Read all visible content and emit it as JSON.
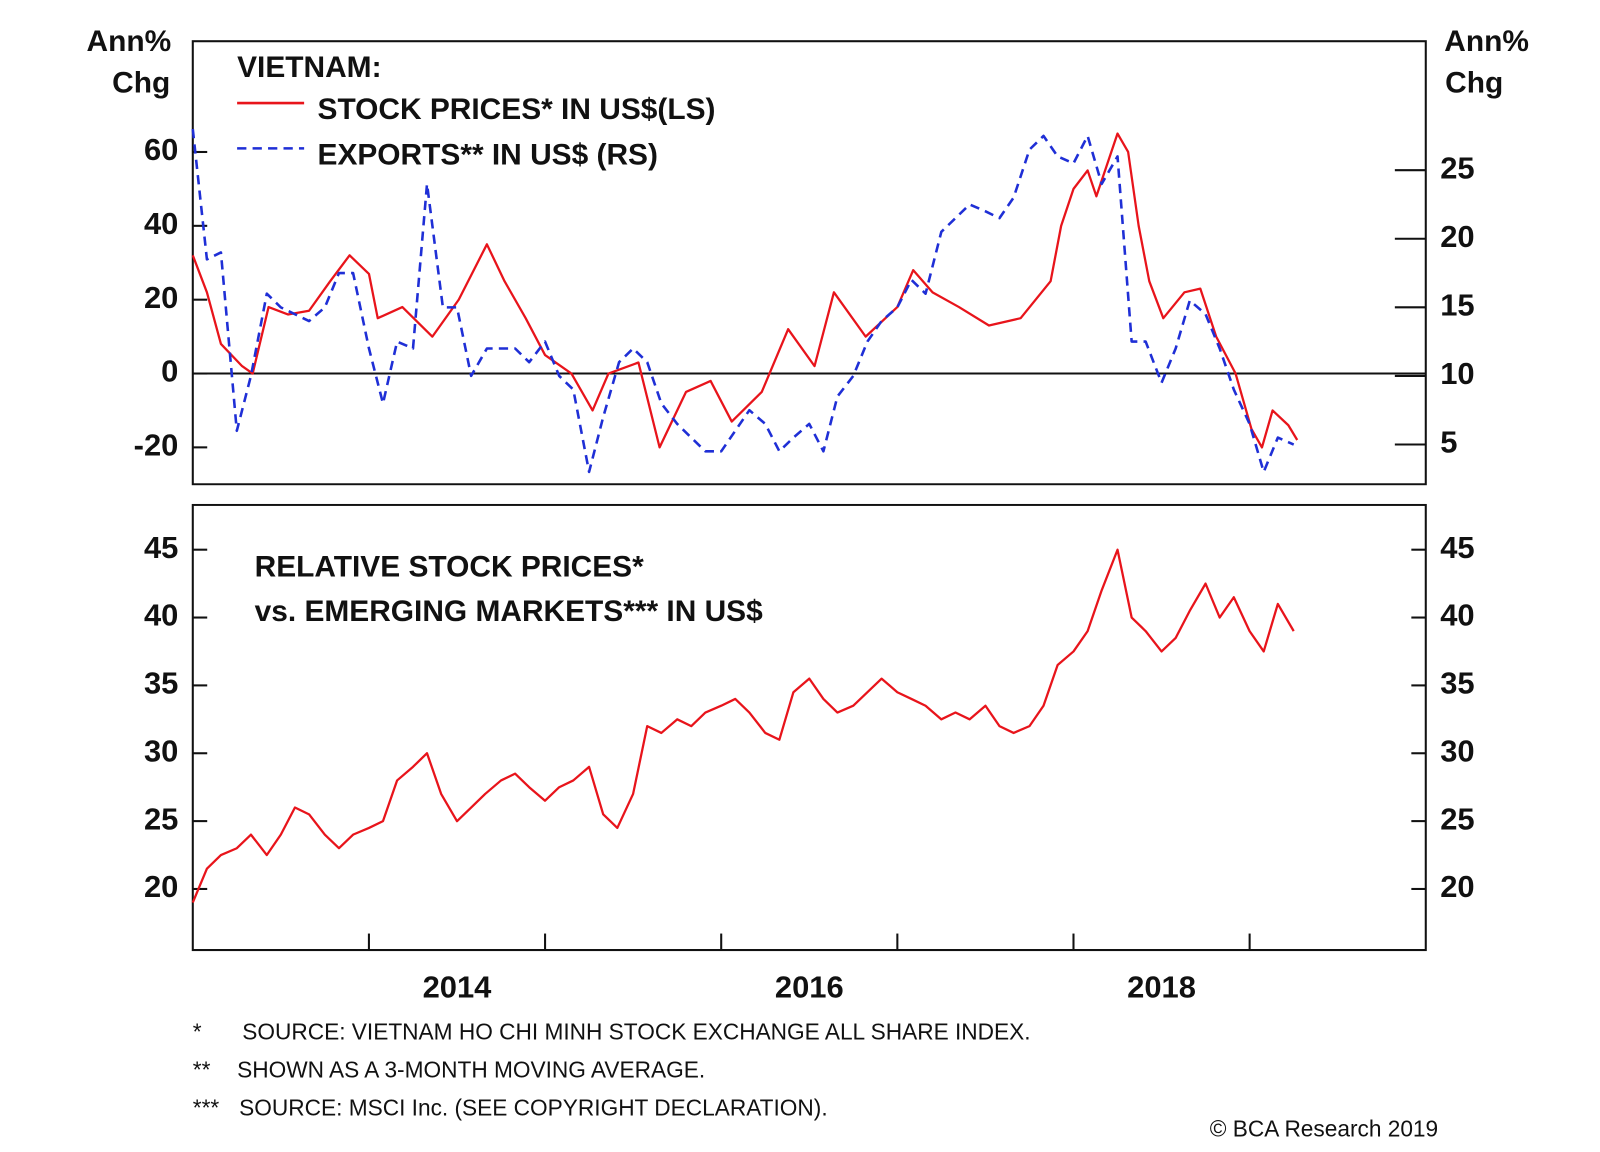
{
  "chart_data": [
    {
      "type": "line",
      "legend_title": "VIETNAM:",
      "ylabel": [
        "Ann%",
        "Chg"
      ],
      "y2label": [
        "Ann%",
        "Chg"
      ],
      "xlim": [
        2013,
        2020
      ],
      "ylim": [
        -30,
        90
      ],
      "yticks": [
        -20,
        0,
        20,
        40,
        60
      ],
      "y2lim": [
        2.1,
        34.4
      ],
      "y2ticks": [
        5,
        10,
        15,
        20,
        25
      ],
      "zero_line": true,
      "series": [
        {
          "name": "STOCK PRICES* IN US$(LS)",
          "color": "#e8141b",
          "dash": false,
          "axis": "y",
          "x": [
            2013.0,
            2013.08,
            2013.16,
            2013.28,
            2013.34,
            2013.43,
            2013.54,
            2013.66,
            2013.78,
            2013.89,
            2014.0,
            2014.05,
            2014.19,
            2014.36,
            2014.51,
            2014.67,
            2014.77,
            2014.89,
            2015.0,
            2015.15,
            2015.27,
            2015.36,
            2015.53,
            2015.65,
            2015.8,
            2015.94,
            2016.06,
            2016.23,
            2016.38,
            2016.53,
            2016.64,
            2016.82,
            2017.0,
            2017.09,
            2017.2,
            2017.35,
            2017.52,
            2017.7,
            2017.87,
            2017.93,
            2018.0,
            2018.08,
            2018.13,
            2018.25,
            2018.31,
            2018.37,
            2018.43,
            2018.51,
            2018.63,
            2018.72,
            2018.81,
            2018.92,
            2019.01,
            2019.07,
            2019.13,
            2019.22,
            2019.27
          ],
          "values": [
            32,
            22,
            8,
            2,
            0,
            18,
            16,
            17,
            25,
            32,
            27,
            15,
            18,
            10,
            20,
            35,
            25,
            15,
            5,
            0,
            -10,
            0,
            3,
            -20,
            -5,
            -2,
            -13,
            -5,
            12,
            2,
            22,
            10,
            18,
            28,
            22,
            18,
            13,
            15,
            25,
            40,
            50,
            55,
            48,
            65,
            60,
            40,
            25,
            15,
            22,
            23,
            10,
            0,
            -15,
            -20,
            -10,
            -14,
            -18
          ]
        },
        {
          "name": "EXPORTS** IN US$ (RS)",
          "color": "#1f2fd6",
          "dash": true,
          "axis": "y2",
          "x": [
            2013.0,
            2013.08,
            2013.16,
            2013.25,
            2013.33,
            2013.42,
            2013.5,
            2013.66,
            2013.75,
            2013.83,
            2013.91,
            2014.0,
            2014.08,
            2014.16,
            2014.25,
            2014.33,
            2014.42,
            2014.5,
            2014.58,
            2014.67,
            2014.75,
            2014.83,
            2014.91,
            2015.0,
            2015.08,
            2015.16,
            2015.25,
            2015.33,
            2015.42,
            2015.5,
            2015.58,
            2015.66,
            2015.75,
            2015.83,
            2015.91,
            2016.0,
            2016.08,
            2016.16,
            2016.25,
            2016.33,
            2016.41,
            2016.5,
            2016.58,
            2016.66,
            2016.75,
            2016.83,
            2016.91,
            2017.0,
            2017.08,
            2017.16,
            2017.25,
            2017.33,
            2017.41,
            2017.5,
            2017.58,
            2017.66,
            2017.75,
            2017.83,
            2017.91,
            2018.0,
            2018.08,
            2018.16,
            2018.25,
            2018.33,
            2018.41,
            2018.5,
            2018.58,
            2018.66,
            2018.75,
            2018.83,
            2018.91,
            2019.0,
            2019.08,
            2019.16,
            2019.25
          ],
          "values": [
            28,
            18.5,
            19,
            6,
            10,
            16,
            15,
            14,
            15,
            17.5,
            17.5,
            12,
            8,
            12.5,
            12,
            24,
            15,
            15,
            10,
            12,
            12,
            12,
            11,
            12.5,
            10,
            9,
            3,
            7,
            11,
            12,
            11,
            8,
            6.5,
            5.5,
            4.5,
            4.5,
            6,
            7.5,
            6.5,
            4.5,
            5.5,
            6.5,
            4.5,
            8.5,
            10,
            12.5,
            14,
            15,
            17,
            16,
            20.5,
            21.5,
            22.5,
            22,
            21.5,
            23,
            26.5,
            27.5,
            26,
            25.5,
            27.5,
            24,
            26,
            12.5,
            12.5,
            9.5,
            12,
            15.5,
            14.5,
            12,
            9,
            6.5,
            3,
            5.5,
            5
          ]
        }
      ]
    },
    {
      "type": "line",
      "annotation": [
        "RELATIVE STOCK PRICES*",
        "vs. EMERGING MARKETS*** IN US$"
      ],
      "xlim": [
        2013,
        2020
      ],
      "xticks": [
        2014,
        2015,
        2016,
        2017,
        2018,
        2019
      ],
      "xtick_labels": [
        2014,
        2016,
        2018
      ],
      "ylim": [
        15.5,
        48.3
      ],
      "yticks": [
        20,
        25,
        30,
        35,
        40,
        45
      ],
      "mirror_yticks": true,
      "series": [
        {
          "color": "#e8141b",
          "dash": false,
          "axis": "y",
          "x": [
            2013.0,
            2013.08,
            2013.16,
            2013.25,
            2013.33,
            2013.42,
            2013.5,
            2013.58,
            2013.66,
            2013.75,
            2013.83,
            2013.91,
            2014.0,
            2014.08,
            2014.16,
            2014.25,
            2014.33,
            2014.41,
            2014.5,
            2014.58,
            2014.66,
            2014.75,
            2014.83,
            2014.91,
            2015.0,
            2015.08,
            2015.16,
            2015.25,
            2015.33,
            2015.41,
            2015.5,
            2015.58,
            2015.66,
            2015.75,
            2015.83,
            2015.91,
            2016.0,
            2016.08,
            2016.16,
            2016.25,
            2016.33,
            2016.41,
            2016.5,
            2016.58,
            2016.66,
            2016.75,
            2016.83,
            2016.91,
            2017.0,
            2017.08,
            2017.16,
            2017.25,
            2017.33,
            2017.41,
            2017.5,
            2017.58,
            2017.66,
            2017.75,
            2017.83,
            2017.91,
            2018.0,
            2018.08,
            2018.16,
            2018.25,
            2018.33,
            2018.41,
            2018.5,
            2018.58,
            2018.66,
            2018.75,
            2018.83,
            2018.91,
            2019.0,
            2019.08,
            2019.16,
            2019.25
          ],
          "values": [
            19,
            21.5,
            22.5,
            23,
            24,
            22.5,
            24,
            26,
            25.5,
            24,
            23,
            24,
            24.5,
            25,
            28,
            29,
            30,
            27,
            25,
            26,
            27,
            28,
            28.5,
            27.5,
            26.5,
            27.5,
            28,
            29,
            25.5,
            24.5,
            27,
            32,
            31.5,
            32.5,
            32,
            33,
            33.5,
            34,
            33,
            31.5,
            31,
            34.5,
            35.5,
            34,
            33,
            33.5,
            34.5,
            35.5,
            34.5,
            34,
            33.5,
            32.5,
            33,
            32.5,
            33.5,
            32,
            31.5,
            32,
            33.5,
            36.5,
            37.5,
            39,
            42,
            45,
            40,
            39,
            37.5,
            38.5,
            40.5,
            42.5,
            40,
            41.5,
            39,
            37.5,
            41,
            39
          ]
        }
      ]
    }
  ],
  "footnotes": [
    {
      "marker": "*",
      "text": "SOURCE: VIETNAM HO CHI MINH STOCK EXCHANGE ALL SHARE INDEX."
    },
    {
      "marker": "**",
      "text": "SHOWN AS A 3-MONTH MOVING AVERAGE."
    },
    {
      "marker": "***",
      "text": "SOURCE: MSCI Inc. (SEE COPYRIGHT DECLARATION)."
    }
  ],
  "credit": "© BCA Research 2019"
}
